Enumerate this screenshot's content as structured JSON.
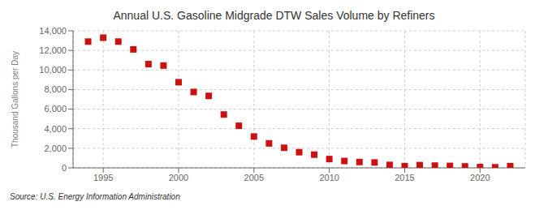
{
  "chart_data": {
    "type": "scatter",
    "title": "Annual U.S. Gasoline Midgrade DTW Sales Volume by Refiners",
    "ylabel": "Thousand Gallons per Day",
    "source": "Source: U.S. Energy Information Administration",
    "color": "#cc1111",
    "marker": "square",
    "grid": true,
    "xlim": [
      1993.0,
      2023.0
    ],
    "xticks": [
      1995,
      2000,
      2005,
      2010,
      2015,
      2020
    ],
    "ylim": [
      0,
      14000
    ],
    "yticks": [
      0,
      {
        "value": 2000,
        "label": "2,000"
      },
      {
        "value": 4000,
        "label": "4,000"
      },
      {
        "value": 6000,
        "label": "6,000"
      },
      {
        "value": 8000,
        "label": "8,000"
      },
      {
        "value": 10000,
        "label": "10,000"
      },
      {
        "value": 12000,
        "label": "12,000"
      },
      {
        "value": 14000,
        "label": "14,000"
      }
    ],
    "x": [
      1994,
      1995,
      1996,
      1997,
      1998,
      1999,
      2000,
      2001,
      2002,
      2003,
      2004,
      2005,
      2006,
      2007,
      2008,
      2009,
      2010,
      2011,
      2012,
      2013,
      2014,
      2015,
      2016,
      2017,
      2018,
      2019,
      2020,
      2021,
      2022
    ],
    "values": [
      12900,
      13300,
      12900,
      12100,
      10600,
      10450,
      8750,
      7750,
      7350,
      5450,
      4300,
      3200,
      2500,
      2050,
      1600,
      1350,
      900,
      700,
      600,
      550,
      300,
      175,
      280,
      230,
      200,
      150,
      80,
      60,
      175
    ]
  }
}
